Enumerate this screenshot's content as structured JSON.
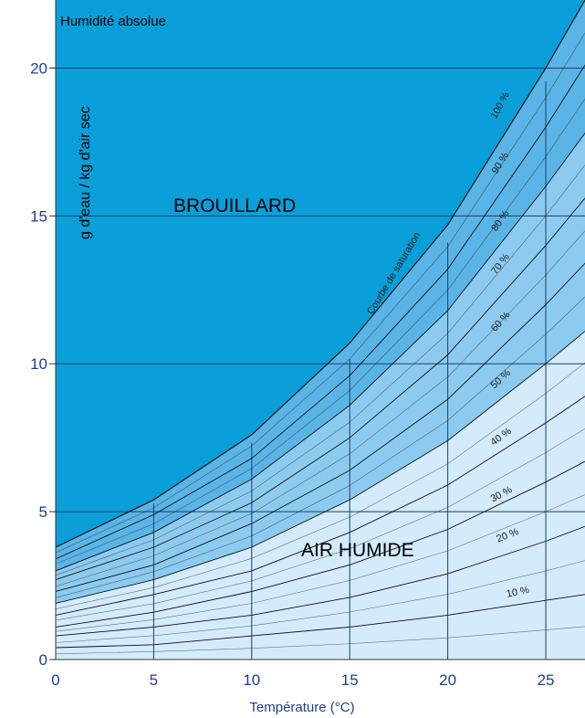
{
  "chart_data": {
    "type": "area",
    "title": "Humidité absolue",
    "xlabel": "Température (°C)",
    "ylabel": "g d'eau / kg d'air sec",
    "xlim": [
      0,
      27
    ],
    "ylim": [
      0,
      22.3
    ],
    "x_ticks": [
      "0",
      "5",
      "10",
      "15",
      "20",
      "25"
    ],
    "y_ticks": [
      "0",
      "5",
      "10",
      "15",
      "20"
    ],
    "grid": true,
    "regions": {
      "fog": "BROUILLARD",
      "humid_air": "AIR HUMIDE"
    },
    "saturation_label": "Courbe de saturation",
    "x": [
      0,
      5,
      10,
      15,
      20,
      25,
      27
    ],
    "series": [
      {
        "name": "100 %",
        "values": [
          3.8,
          5.4,
          7.6,
          10.7,
          14.7,
          20.0,
          22.3
        ]
      },
      {
        "name": "90 %",
        "values": [
          3.4,
          4.9,
          6.8,
          9.6,
          13.2,
          18.0,
          20.1
        ]
      },
      {
        "name": "80 %",
        "values": [
          3.0,
          4.3,
          6.1,
          8.6,
          11.8,
          16.0,
          17.8
        ]
      },
      {
        "name": "70 %",
        "values": [
          2.7,
          3.8,
          5.3,
          7.5,
          10.3,
          14.0,
          15.6
        ]
      },
      {
        "name": "60 %",
        "values": [
          2.3,
          3.2,
          4.6,
          6.4,
          8.8,
          12.0,
          13.4
        ]
      },
      {
        "name": "50 %",
        "values": [
          1.9,
          2.7,
          3.8,
          5.4,
          7.4,
          10.0,
          11.1
        ]
      },
      {
        "name": "40 %",
        "values": [
          1.5,
          2.2,
          3.0,
          4.3,
          5.9,
          8.0,
          8.9
        ]
      },
      {
        "name": "30 %",
        "values": [
          1.1,
          1.6,
          2.3,
          3.2,
          4.4,
          6.0,
          6.7
        ]
      },
      {
        "name": "20 %",
        "values": [
          0.8,
          1.1,
          1.5,
          2.1,
          2.9,
          4.0,
          4.5
        ]
      },
      {
        "name": "10 %",
        "values": [
          0.4,
          0.5,
          0.8,
          1.1,
          1.5,
          2.0,
          2.2
        ]
      }
    ],
    "colors": {
      "fog": "#0a9fd8",
      "band_high": "#5ab4e6",
      "band_mid": "#8ccbef",
      "band_low": "#d3ebfa",
      "grid": "#1b3f6b",
      "curve": "#111111",
      "axis_text": "#1f3f8f"
    }
  }
}
